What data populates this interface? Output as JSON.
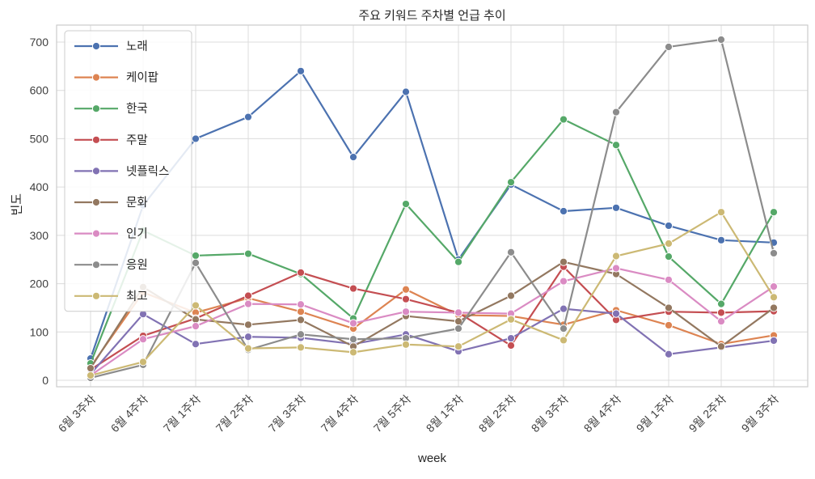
{
  "chart_data": {
    "type": "line",
    "title": "주요 키워드 주차별 언급 추이",
    "xlabel": "week",
    "ylabel": "빈도",
    "grid": true,
    "legend_position": "upper-left",
    "marker": "circle",
    "ylim": [
      0,
      700
    ],
    "yticks": [
      0,
      100,
      200,
      300,
      400,
      500,
      600,
      700
    ],
    "categories": [
      "6월 3주차",
      "6월 4주차",
      "7월 1주차",
      "7월 2주차",
      "7월 3주차",
      "7월 4주차",
      "7월 5주차",
      "8월 1주차",
      "8월 2주차",
      "8월 3주차",
      "8월 4주차",
      "9월 1주차",
      "9월 2주차",
      "9월 3주차"
    ],
    "series": [
      {
        "name": "노래",
        "color": "#4C72B0",
        "values": [
          45,
          362,
          500,
          545,
          640,
          462,
          597,
          250,
          405,
          350,
          357,
          320,
          290,
          285
        ]
      },
      {
        "name": "케이팝",
        "color": "#DD8452",
        "values": [
          28,
          182,
          140,
          170,
          142,
          107,
          188,
          135,
          133,
          115,
          145,
          114,
          75,
          93
        ]
      },
      {
        "name": "한국",
        "color": "#55A868",
        "values": [
          35,
          310,
          258,
          262,
          220,
          128,
          365,
          245,
          410,
          540,
          487,
          256,
          158,
          348
        ]
      },
      {
        "name": "주말",
        "color": "#C44E52",
        "values": [
          22,
          92,
          128,
          175,
          223,
          190,
          168,
          140,
          72,
          235,
          125,
          142,
          140,
          143
        ]
      },
      {
        "name": "넷플릭스",
        "color": "#8172B3",
        "values": [
          13,
          137,
          75,
          90,
          88,
          75,
          95,
          60,
          87,
          148,
          138,
          54,
          68,
          82
        ]
      },
      {
        "name": "문화",
        "color": "#937860",
        "values": [
          25,
          193,
          126,
          115,
          125,
          70,
          133,
          122,
          175,
          245,
          220,
          150,
          70,
          150
        ]
      },
      {
        "name": "인기",
        "color": "#DA8BC3",
        "values": [
          10,
          85,
          112,
          158,
          157,
          118,
          142,
          140,
          138,
          205,
          232,
          208,
          122,
          194
        ]
      },
      {
        "name": "응원",
        "color": "#8C8C8C",
        "values": [
          5,
          32,
          243,
          63,
          95,
          85,
          87,
          107,
          265,
          107,
          555,
          690,
          705,
          263
        ]
      },
      {
        "name": "최고",
        "color": "#CCB974",
        "values": [
          10,
          38,
          155,
          66,
          68,
          58,
          74,
          70,
          126,
          83,
          257,
          283,
          348,
          172
        ]
      }
    ],
    "style": {
      "grid_color": "#dcdcdc",
      "spine_color": "#cccccc",
      "tick_color": "#404040",
      "background": "#ffffff",
      "legend_border": "#cccccc"
    }
  }
}
